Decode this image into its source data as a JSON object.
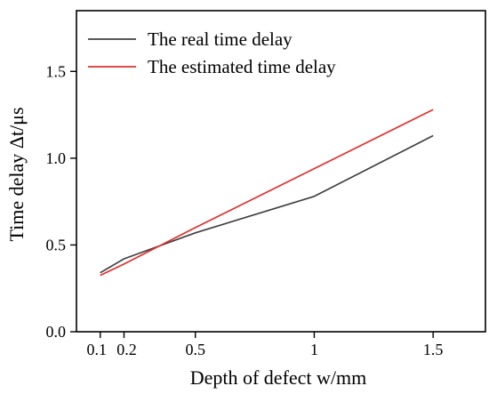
{
  "chart_data": {
    "type": "line",
    "xlabel": "Depth of defect w/mm",
    "ylabel": "Time delay Δt/μs",
    "xlim": [
      0.0,
      1.72
    ],
    "ylim": [
      0.0,
      1.85
    ],
    "xticks": [
      0.1,
      0.2,
      0.5,
      1,
      1.5
    ],
    "xtick_labels": [
      "0.1",
      "0.2",
      "0.5",
      "1",
      "1.5"
    ],
    "yticks": [
      0.0,
      0.5,
      1.0,
      1.5
    ],
    "ytick_labels": [
      "0.0",
      "0.5",
      "1.0",
      "1.5"
    ],
    "legend_position": "top-left",
    "grid": false,
    "series": [
      {
        "name": "The real time delay",
        "color": "#404040",
        "x": [
          0.1,
          0.2,
          0.5,
          1,
          1.5
        ],
        "y": [
          0.34,
          0.42,
          0.57,
          0.78,
          1.13
        ]
      },
      {
        "name": "The estimated time delay",
        "color": "#e03030",
        "x": [
          0.1,
          0.2,
          0.5,
          1,
          1.5
        ],
        "y": [
          0.325,
          0.39,
          0.6,
          0.94,
          1.28
        ]
      }
    ]
  }
}
